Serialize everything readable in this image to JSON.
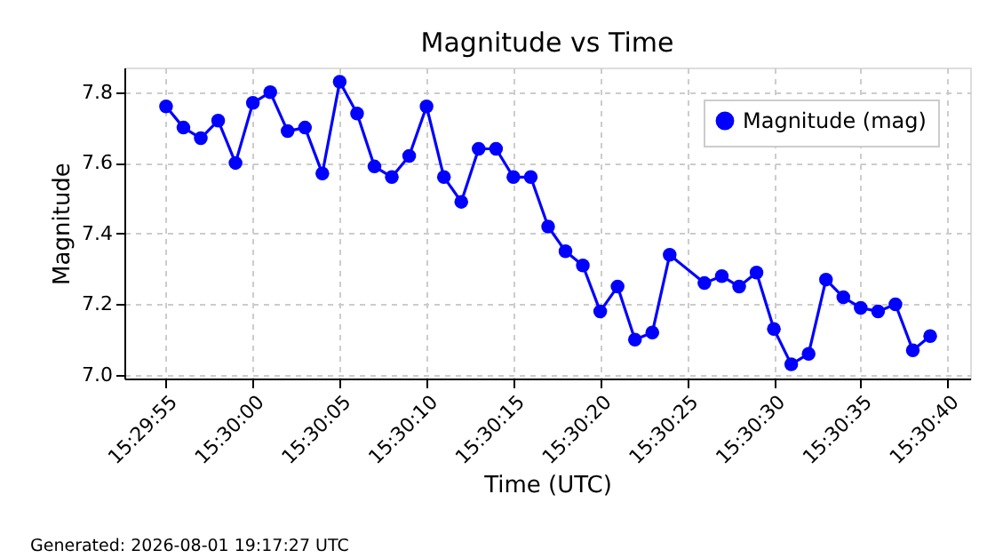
{
  "chart_data": {
    "type": "line",
    "title": "Magnitude vs Time",
    "xlabel": "Time (UTC)",
    "ylabel": "Magnitude",
    "x": [
      "2026-08-01T15:29:55",
      "2026-08-01T15:29:56",
      "2026-08-01T15:29:57",
      "2026-08-01T15:29:58",
      "2026-08-01T15:29:59",
      "2026-08-01T15:30:00",
      "2026-08-01T15:30:01",
      "2026-08-01T15:30:02",
      "2026-08-01T15:30:03",
      "2026-08-01T15:30:04",
      "2026-08-01T15:30:05",
      "2026-08-01T15:30:06",
      "2026-08-01T15:30:07",
      "2026-08-01T15:30:08",
      "2026-08-01T15:30:09",
      "2026-08-01T15:30:10",
      "2026-08-01T15:30:11",
      "2026-08-01T15:30:12",
      "2026-08-01T15:30:13",
      "2026-08-01T15:30:14",
      "2026-08-01T15:30:15",
      "2026-08-01T15:30:16",
      "2026-08-01T15:30:17",
      "2026-08-01T15:30:18",
      "2026-08-01T15:30:19",
      "2026-08-01T15:30:20",
      "2026-08-01T15:30:21",
      "2026-08-01T15:30:22",
      "2026-08-01T15:30:23",
      "2026-08-01T15:30:24",
      "2026-08-01T15:30:26",
      "2026-08-01T15:30:27",
      "2026-08-01T15:30:28",
      "2026-08-01T15:30:29",
      "2026-08-01T15:30:30",
      "2026-08-01T15:30:31",
      "2026-08-01T15:30:32",
      "2026-08-01T15:30:33",
      "2026-08-01T15:30:34",
      "2026-08-01T15:30:35",
      "2026-08-01T15:30:36",
      "2026-08-01T15:30:37",
      "2026-08-01T15:30:38",
      "2026-08-01T15:30:39"
    ],
    "series": [
      {
        "name": "Magnitude (mag)",
        "color": "#0000ff",
        "values": [
          7.76,
          7.7,
          7.67,
          7.72,
          7.6,
          7.77,
          7.8,
          7.69,
          7.7,
          7.57,
          7.83,
          7.74,
          7.59,
          7.56,
          7.62,
          7.76,
          7.56,
          7.49,
          7.64,
          7.64,
          7.56,
          7.56,
          7.42,
          7.35,
          7.31,
          7.18,
          7.25,
          7.1,
          7.12,
          7.34,
          7.26,
          7.28,
          7.25,
          7.29,
          7.13,
          7.03,
          7.06,
          7.27,
          7.22,
          7.19,
          7.18,
          7.2,
          7.07,
          7.11
        ]
      }
    ],
    "xlim": [
      "2026-08-01T15:29:52.6",
      "2026-08-01T15:30:41.3"
    ],
    "xticks": [
      {
        "value": "2026-08-01T15:29:55",
        "label": "15:29:55"
      },
      {
        "value": "2026-08-01T15:30:00",
        "label": "15:30:00"
      },
      {
        "value": "2026-08-01T15:30:05",
        "label": "15:30:05"
      },
      {
        "value": "2026-08-01T15:30:10",
        "label": "15:30:10"
      },
      {
        "value": "2026-08-01T15:30:15",
        "label": "15:30:15"
      },
      {
        "value": "2026-08-01T15:30:20",
        "label": "15:30:20"
      },
      {
        "value": "2026-08-01T15:30:25",
        "label": "15:30:25"
      },
      {
        "value": "2026-08-01T15:30:30",
        "label": "15:30:30"
      },
      {
        "value": "2026-08-01T15:30:35",
        "label": "15:30:35"
      },
      {
        "value": "2026-08-01T15:30:40",
        "label": "15:30:40"
      }
    ],
    "ylim": [
      6.99,
      7.87
    ],
    "yticks": [
      {
        "value": 7.0,
        "label": "7.0"
      },
      {
        "value": 7.2,
        "label": "7.2"
      },
      {
        "value": 7.4,
        "label": "7.4"
      },
      {
        "value": 7.6,
        "label": "7.6"
      },
      {
        "value": 7.8,
        "label": "7.8"
      }
    ],
    "grid": true,
    "legend": "top right",
    "marker": "circle",
    "line_style": "solid",
    "annotations": [
      "Generated: 2026-08-01 19:17:27 UTC"
    ]
  }
}
